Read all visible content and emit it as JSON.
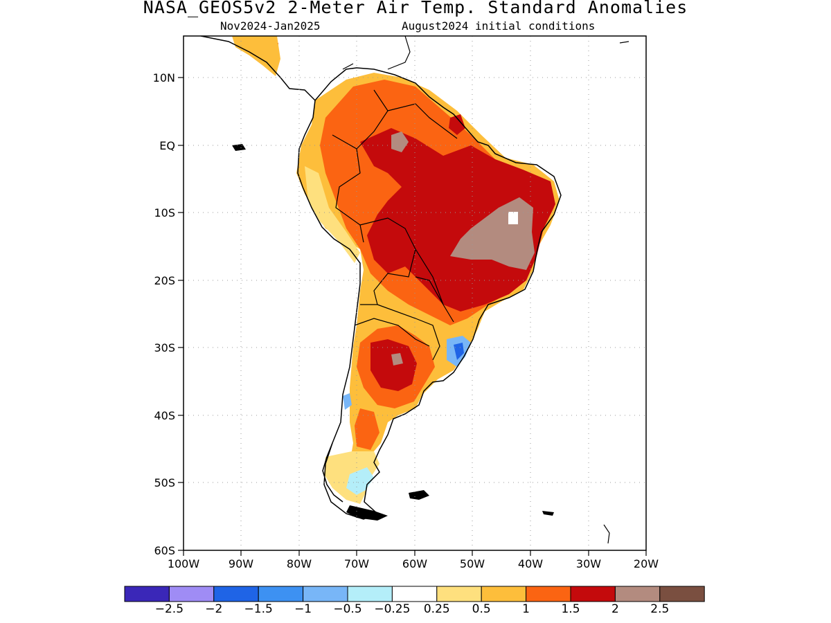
{
  "header": {
    "title": "NASA_GEOS5v2 2-Meter Air Temp. Standard Anomalies",
    "period": "Nov2024-Jan2025",
    "init": "August2024 initial conditions"
  },
  "axes": {
    "lat_labels": [
      "10N",
      "EQ",
      "10S",
      "20S",
      "30S",
      "40S",
      "50S",
      "60S"
    ],
    "lon_labels": [
      "100W",
      "90W",
      "80W",
      "70W",
      "60W",
      "50W",
      "40W",
      "30W",
      "20W"
    ]
  },
  "colorbar": {
    "colors": [
      "#3a27b8",
      "#9f8cf5",
      "#1f64e6",
      "#3d91f2",
      "#78b6f7",
      "#b4eef9",
      "#ffffff",
      "#fee07e",
      "#fdbe3b",
      "#fb6412",
      "#c40a0c",
      "#b38b7f",
      "#7a4f40"
    ],
    "labels": [
      "-2.5",
      "-2",
      "-1.5",
      "-1",
      "-0.5",
      "-0.25",
      "0.25",
      "0.5",
      "1",
      "1.5",
      "2",
      "2.5"
    ]
  },
  "map": {
    "colors": {
      "land_outline": "#000000",
      "weak_warm": "#fee07e",
      "warm": "#fdbe3b",
      "warmer": "#fb6412",
      "hot": "#c40a0c",
      "very_hot": "#b38b7f",
      "cool": "#78b6f7",
      "strong_cool": "#1f64e6",
      "near_neutral": "#b4eef9"
    }
  }
}
